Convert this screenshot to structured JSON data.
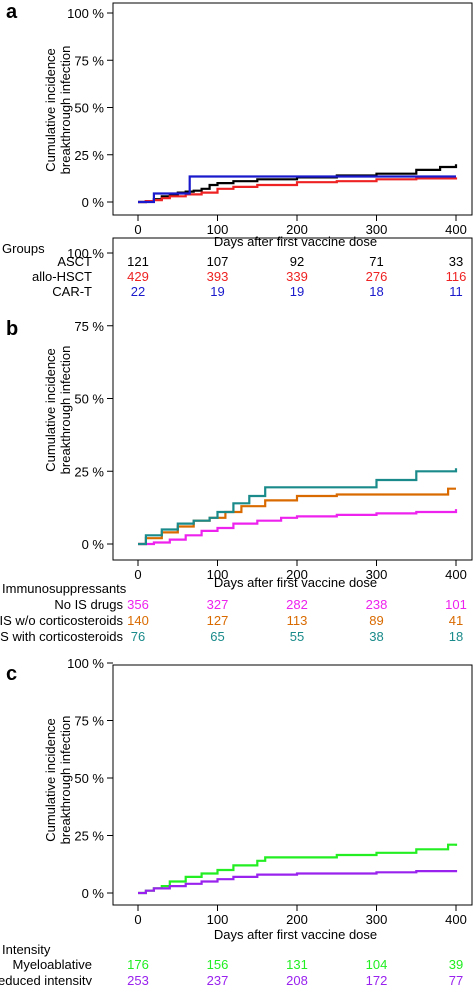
{
  "chart_data": [
    {
      "type": "line",
      "panel_label": "a",
      "xlabel": "Days after first vaccine dose",
      "ylabel": [
        "Cumulative incidence",
        "breakthrough infection"
      ],
      "xlim": [
        0,
        400
      ],
      "ylim": [
        0,
        100
      ],
      "x_ticks": [
        "0",
        "100",
        "200",
        "300",
        "400"
      ],
      "y_ticks": [
        "0 %",
        "25 %",
        "50 %",
        "75 %",
        "100 %"
      ],
      "series": [
        {
          "color": "#000000",
          "x": [
            0,
            10,
            20,
            30,
            40,
            50,
            60,
            70,
            80,
            90,
            100,
            120,
            150,
            200,
            250,
            300,
            350,
            380,
            400
          ],
          "y": [
            0,
            0.5,
            1.5,
            3,
            4,
            5,
            5.5,
            6,
            7,
            9,
            10,
            11,
            12,
            13,
            14,
            15,
            17,
            18.5,
            20
          ]
        },
        {
          "color": "#ee2222",
          "x": [
            0,
            10,
            20,
            30,
            40,
            60,
            80,
            100,
            120,
            150,
            200,
            250,
            300,
            350,
            400
          ],
          "y": [
            0,
            0.5,
            1,
            2,
            3,
            4,
            5,
            7,
            8,
            9,
            10.5,
            11,
            12,
            12.5,
            13
          ]
        },
        {
          "color": "#1a1acc",
          "x": [
            0,
            15,
            20,
            45,
            65,
            70,
            100,
            200,
            300,
            400
          ],
          "y": [
            0,
            0,
            4.5,
            4.5,
            13.5,
            13.5,
            13.5,
            13.5,
            13.5,
            13.5
          ]
        }
      ],
      "risk_table": {
        "title": "Groups",
        "rows": [
          {
            "label": "ASCT",
            "values": [
              "121",
              "107",
              "92",
              "71",
              "33"
            ],
            "color": "#000000"
          },
          {
            "label": "allo-HSCT",
            "values": [
              "429",
              "393",
              "339",
              "276",
              "116"
            ],
            "color": "#ee2222"
          },
          {
            "label": "CAR-T",
            "values": [
              "22",
              "19",
              "19",
              "18",
              "11"
            ],
            "color": "#1a1acc"
          }
        ]
      }
    },
    {
      "type": "line",
      "panel_label": "b",
      "xlabel": "Days after first vaccine dose",
      "ylabel": [
        "Cumulative incidence",
        "breakthrough infection"
      ],
      "xlim": [
        0,
        400
      ],
      "ylim": [
        0,
        100
      ],
      "x_ticks": [
        "0",
        "100",
        "200",
        "300",
        "400"
      ],
      "y_ticks": [
        "0 %",
        "25 %",
        "50 %",
        "75 %",
        "100 %"
      ],
      "series": [
        {
          "color": "#ee22ee",
          "x": [
            0,
            20,
            40,
            60,
            80,
            100,
            120,
            150,
            180,
            200,
            250,
            300,
            350,
            400
          ],
          "y": [
            0,
            0.5,
            1.5,
            3,
            4.5,
            5.5,
            7,
            8,
            9,
            9.5,
            10,
            10.5,
            11,
            12
          ]
        },
        {
          "color": "#d96a00",
          "x": [
            0,
            10,
            30,
            50,
            70,
            90,
            110,
            130,
            160,
            200,
            250,
            300,
            350,
            390,
            400
          ],
          "y": [
            0,
            2,
            4,
            6,
            8,
            9,
            11,
            13,
            15,
            16.5,
            17,
            17,
            17,
            19,
            19
          ]
        },
        {
          "color": "#1a8a8a",
          "x": [
            0,
            10,
            30,
            50,
            70,
            90,
            100,
            120,
            140,
            160,
            200,
            250,
            300,
            350,
            400
          ],
          "y": [
            0,
            3,
            5,
            7,
            8,
            9,
            11,
            14,
            16.5,
            19.5,
            19.5,
            19.5,
            22,
            25,
            26
          ]
        }
      ],
      "risk_table": {
        "title": "Immunosuppressants",
        "rows": [
          {
            "label": "No IS drugs",
            "values": [
              "356",
              "327",
              "282",
              "238",
              "101"
            ],
            "color": "#ee22ee"
          },
          {
            "label": "IS w/o corticosteroids",
            "values": [
              "140",
              "127",
              "113",
              "89",
              "41"
            ],
            "color": "#d96a00"
          },
          {
            "label": "IS with corticosteroids",
            "values": [
              "76",
              "65",
              "55",
              "38",
              "18"
            ],
            "color": "#1a8a8a"
          }
        ]
      }
    },
    {
      "type": "line",
      "panel_label": "c",
      "xlabel": "Days after first vaccine dose",
      "ylabel": [
        "Cumulative incidence",
        "breakthrough infection"
      ],
      "xlim": [
        0,
        400
      ],
      "ylim": [
        0,
        100
      ],
      "x_ticks": [
        "0",
        "100",
        "200",
        "300",
        "400"
      ],
      "y_ticks": [
        "0 %",
        "25 %",
        "50 %",
        "75 %",
        "100 %"
      ],
      "series": [
        {
          "color": "#22ee22",
          "x": [
            0,
            10,
            20,
            30,
            40,
            60,
            80,
            100,
            120,
            150,
            160,
            200,
            250,
            300,
            350,
            390,
            400
          ],
          "y": [
            0,
            1,
            2,
            3,
            5,
            7,
            8.5,
            10,
            12,
            14,
            15.5,
            15.5,
            16.5,
            17.5,
            19,
            21,
            20.5
          ]
        },
        {
          "color": "#9922ee",
          "x": [
            0,
            10,
            20,
            40,
            60,
            80,
            100,
            120,
            150,
            200,
            250,
            300,
            350,
            400
          ],
          "y": [
            0,
            1,
            2,
            3,
            4,
            5,
            6,
            7,
            8,
            8.5,
            8.5,
            9,
            9.5,
            10
          ]
        }
      ],
      "risk_table": {
        "title": "Intensity",
        "rows": [
          {
            "label": "Myeloablative",
            "values": [
              "176",
              "156",
              "131",
              "104",
              "39"
            ],
            "color": "#22ee22"
          },
          {
            "label": "Reduced intensity",
            "values": [
              "253",
              "237",
              "208",
              "172",
              "77"
            ],
            "color": "#9922ee"
          }
        ]
      }
    }
  ]
}
